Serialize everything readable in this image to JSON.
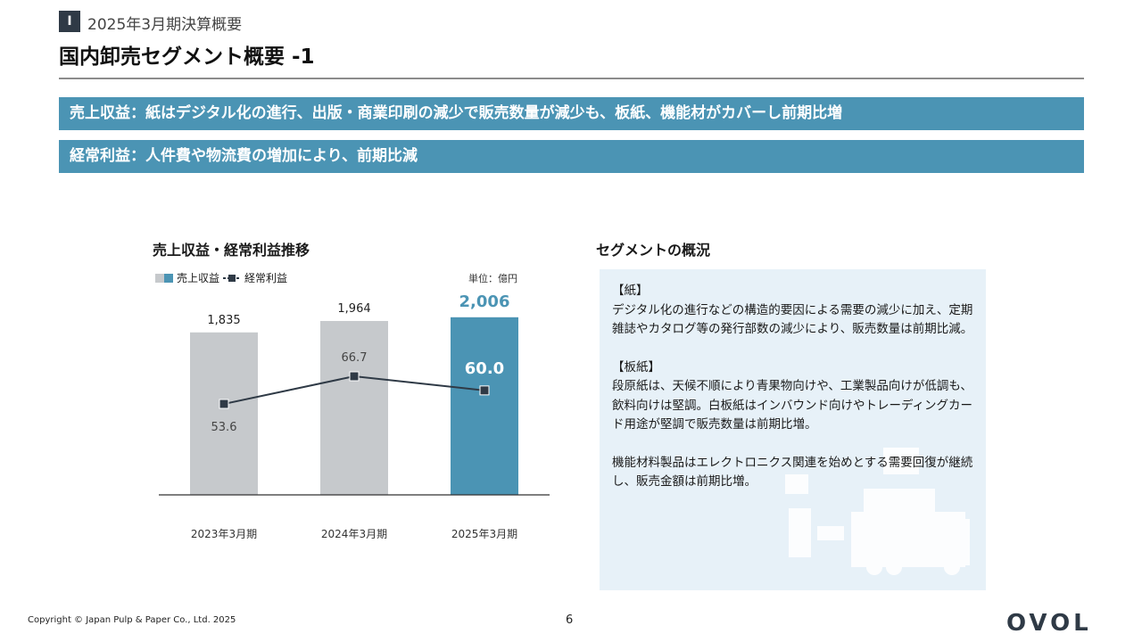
{
  "header": {
    "section_number": "Ⅰ",
    "section_label": "2025年3月期決算概要",
    "title": "国内卸売セグメント概要 -1"
  },
  "banners": [
    "売上収益：紙はデジタル化の進行、出版・商業印刷の減少で販売数量が減少も、板紙、機能材がカバーし前期比増",
    "経常利益：人件費や物流費の増加により、前期比減"
  ],
  "chart_section": {
    "title": "売上収益・経常利益推移",
    "unit": "単位：億円"
  },
  "chart_data": {
    "type": "bar",
    "categories": [
      "2023年3月期",
      "2024年3月期",
      "2025年3月期"
    ],
    "series": [
      {
        "name": "売上収益",
        "type": "bar",
        "values": [
          1835,
          1964,
          2006
        ],
        "value_labels": [
          "1,835",
          "1,964",
          "2,006"
        ]
      },
      {
        "name": "経常利益",
        "type": "line",
        "values": [
          53.6,
          66.7,
          60.0
        ],
        "value_labels": [
          "53.6",
          "66.7",
          "60.0"
        ]
      }
    ],
    "colors": {
      "bar": "#c6c9cc",
      "bar_highlight": "#4b94b4",
      "line": "#2f3a46"
    }
  },
  "panel": {
    "title": "セグメントの概況",
    "paragraphs": [
      "【紙】\nデジタル化の進行などの構造的要因による需要の減少に加え、定期雑誌やカタログ等の発行部数の減少により、販売数量は前期比減。",
      "【板紙】\n段原紙は、天候不順により青果物向けや、工業製品向けが低調も、飲料向けは堅調。白板紙はインバウンド向けやトレーディングカード用途が堅調で販売数量は前期比増。",
      "機能材料製品はエレクトロニクス関連を始めとする需要回復が継続し、販売金額は前期比増。"
    ]
  },
  "footer": {
    "copyright": "Copyright © Japan Pulp & Paper Co., Ltd. 2025",
    "page": "6",
    "logo": "OVOL"
  }
}
